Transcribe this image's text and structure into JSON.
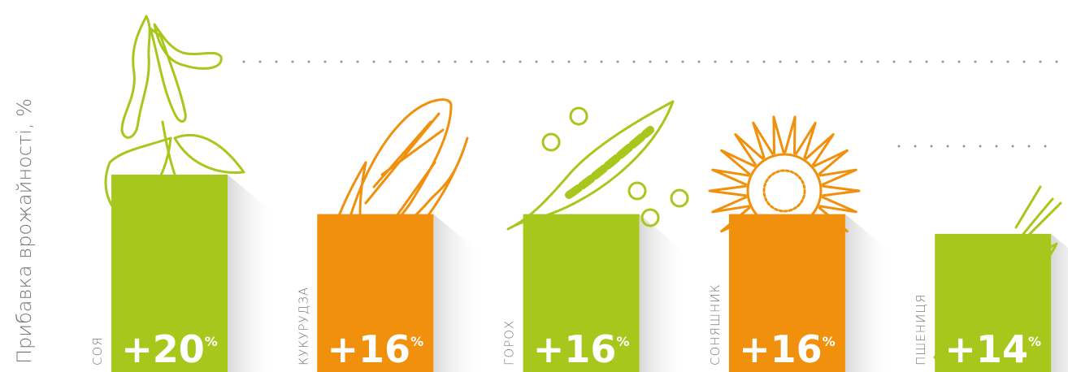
{
  "chart_data": {
    "type": "bar",
    "y_label": "Прибавка врожайності, %",
    "categories": [
      "СОЯ",
      "КУКУРУДЗА",
      "ГОРОХ",
      "СОНЯШНИК",
      "ПШЕНИЦЯ"
    ],
    "values": [
      20,
      16,
      16,
      16,
      14
    ],
    "value_labels": [
      "+20%",
      "+16%",
      "+16%",
      "+16%",
      "+14%"
    ],
    "colors": [
      "#a8c71c",
      "#f0900c",
      "#a8c71c",
      "#f0900c",
      "#a8c71c"
    ],
    "ylim": [
      0,
      20
    ]
  }
}
